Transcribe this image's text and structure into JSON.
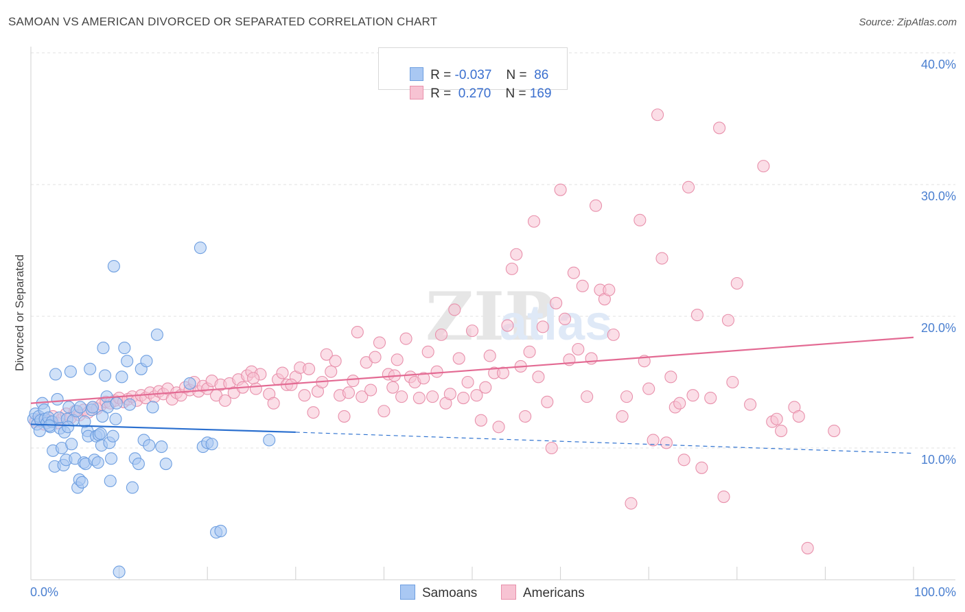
{
  "title": "SAMOAN VS AMERICAN DIVORCED OR SEPARATED CORRELATION CHART",
  "source": "Source: ZipAtlas.com",
  "watermark": "ZIPatlas",
  "legend": {
    "rows": [
      {
        "r_label": "R =",
        "r_value": "-0.037",
        "n_label": "N =",
        "n_value": "86",
        "color": "#a9c8f3",
        "border": "#6d9ee0"
      },
      {
        "r_label": "R =",
        "r_value": "0.270",
        "n_label": "N =",
        "n_value": "169",
        "color": "#f7c3d3",
        "border": "#e890ab"
      }
    ]
  },
  "bottom_legend": [
    {
      "label": "Samoans",
      "color": "#a9c8f3",
      "border": "#6d9ee0"
    },
    {
      "label": "Americans",
      "color": "#f7c3d3",
      "border": "#e890ab"
    }
  ],
  "chart_data": {
    "type": "scatter",
    "title": "SAMOAN VS AMERICAN DIVORCED OR SEPARATED CORRELATION CHART",
    "xlabel": "",
    "ylabel": "Divorced or Separated",
    "xlim": [
      0,
      100
    ],
    "ylim": [
      0,
      42
    ],
    "x_tick_labels": [
      "0.0%",
      "100.0%"
    ],
    "y_ticks": [
      10,
      20,
      30,
      40
    ],
    "y_tick_labels": [
      "10.0%",
      "20.0%",
      "30.0%",
      "40.0%"
    ],
    "grid": true,
    "legend_position": "top-center",
    "series": [
      {
        "name": "Samoans",
        "color": "#6d9ee0",
        "fill": "#a9c8f3",
        "trend": {
          "x0": 0,
          "y0": 11.8,
          "x1": 30,
          "y1": 11.2,
          "dash_to": 100,
          "dash_y": 9.6
        },
        "points": [
          [
            0.3,
            12.2
          ],
          [
            0.5,
            12.6
          ],
          [
            0.7,
            11.8
          ],
          [
            0.9,
            12.4
          ],
          [
            1.1,
            12.1
          ],
          [
            1.3,
            13.4
          ],
          [
            1.5,
            12.9
          ],
          [
            1.6,
            12.2
          ],
          [
            1.8,
            11.9
          ],
          [
            2.0,
            12.3
          ],
          [
            2.2,
            11.6
          ],
          [
            2.4,
            12.0
          ],
          [
            2.5,
            9.8
          ],
          [
            2.7,
            8.6
          ],
          [
            2.8,
            15.6
          ],
          [
            3.0,
            13.7
          ],
          [
            3.2,
            12.3
          ],
          [
            3.3,
            11.5
          ],
          [
            3.5,
            10.0
          ],
          [
            3.7,
            8.7
          ],
          [
            3.8,
            11.2
          ],
          [
            4.0,
            9.1
          ],
          [
            4.1,
            12.2
          ],
          [
            4.3,
            13.1
          ],
          [
            4.5,
            15.8
          ],
          [
            4.6,
            10.3
          ],
          [
            4.8,
            12.1
          ],
          [
            5.0,
            9.2
          ],
          [
            5.2,
            12.8
          ],
          [
            5.3,
            7.0
          ],
          [
            5.5,
            7.6
          ],
          [
            5.6,
            13.1
          ],
          [
            5.8,
            7.4
          ],
          [
            6.0,
            8.9
          ],
          [
            6.2,
            8.8
          ],
          [
            6.4,
            11.3
          ],
          [
            6.5,
            10.9
          ],
          [
            6.7,
            16.0
          ],
          [
            6.9,
            12.9
          ],
          [
            7.0,
            13.1
          ],
          [
            7.2,
            9.1
          ],
          [
            7.4,
            10.9
          ],
          [
            7.6,
            8.9
          ],
          [
            7.7,
            11.0
          ],
          [
            7.9,
            11.1
          ],
          [
            8.0,
            10.2
          ],
          [
            8.2,
            17.6
          ],
          [
            8.4,
            15.5
          ],
          [
            8.6,
            13.9
          ],
          [
            8.7,
            13.1
          ],
          [
            8.9,
            10.4
          ],
          [
            9.0,
            7.5
          ],
          [
            9.1,
            9.2
          ],
          [
            9.3,
            10.9
          ],
          [
            9.4,
            23.8
          ],
          [
            9.6,
            12.2
          ],
          [
            9.7,
            13.4
          ],
          [
            10.0,
            0.6
          ],
          [
            10.3,
            15.4
          ],
          [
            10.6,
            17.6
          ],
          [
            10.9,
            16.6
          ],
          [
            11.2,
            13.3
          ],
          [
            11.5,
            7.0
          ],
          [
            11.8,
            9.2
          ],
          [
            12.2,
            8.8
          ],
          [
            12.5,
            16.0
          ],
          [
            12.8,
            10.6
          ],
          [
            13.1,
            16.6
          ],
          [
            13.4,
            10.2
          ],
          [
            13.8,
            13.1
          ],
          [
            14.3,
            18.6
          ],
          [
            14.8,
            10.1
          ],
          [
            15.3,
            8.8
          ],
          [
            18.0,
            14.9
          ],
          [
            19.2,
            25.2
          ],
          [
            19.5,
            10.1
          ],
          [
            20.0,
            10.4
          ],
          [
            20.5,
            10.3
          ],
          [
            21.0,
            3.6
          ],
          [
            21.5,
            3.7
          ],
          [
            27.0,
            10.6
          ],
          [
            1.0,
            11.3
          ],
          [
            2.1,
            11.7
          ],
          [
            4.2,
            11.6
          ],
          [
            6.1,
            12.0
          ],
          [
            8.1,
            12.4
          ]
        ]
      },
      {
        "name": "Americans",
        "color": "#e890ab",
        "fill": "#f7c3d3",
        "trend": {
          "x0": 0,
          "y0": 13.4,
          "x1": 100,
          "y1": 18.4
        },
        "points": [
          [
            0.5,
            12.0
          ],
          [
            1.0,
            12.2
          ],
          [
            1.5,
            11.8
          ],
          [
            2.0,
            12.1
          ],
          [
            2.5,
            12.4
          ],
          [
            3.0,
            11.9
          ],
          [
            3.5,
            12.2
          ],
          [
            4.0,
            12.6
          ],
          [
            4.5,
            12.3
          ],
          [
            5.0,
            12.8
          ],
          [
            5.5,
            12.5
          ],
          [
            6.0,
            12.9
          ],
          [
            6.5,
            12.7
          ],
          [
            7.0,
            13.1
          ],
          [
            7.5,
            13.0
          ],
          [
            8.0,
            13.3
          ],
          [
            8.5,
            13.5
          ],
          [
            9.0,
            13.4
          ],
          [
            9.5,
            13.6
          ],
          [
            10.0,
            13.8
          ],
          [
            10.5,
            13.5
          ],
          [
            11.0,
            13.7
          ],
          [
            11.5,
            13.9
          ],
          [
            12.0,
            13.6
          ],
          [
            12.5,
            14.0
          ],
          [
            13.0,
            13.8
          ],
          [
            13.5,
            14.2
          ],
          [
            14.0,
            13.9
          ],
          [
            14.5,
            14.3
          ],
          [
            15.0,
            14.1
          ],
          [
            15.5,
            14.5
          ],
          [
            16.0,
            13.7
          ],
          [
            16.5,
            14.2
          ],
          [
            17.0,
            14.0
          ],
          [
            17.5,
            14.6
          ],
          [
            18.0,
            14.4
          ],
          [
            18.5,
            15.0
          ],
          [
            19.0,
            14.3
          ],
          [
            19.5,
            14.7
          ],
          [
            20.0,
            14.5
          ],
          [
            20.5,
            15.1
          ],
          [
            21.0,
            14.0
          ],
          [
            21.5,
            14.8
          ],
          [
            22.0,
            13.6
          ],
          [
            22.5,
            14.9
          ],
          [
            23.0,
            14.2
          ],
          [
            23.5,
            15.2
          ],
          [
            24.0,
            14.6
          ],
          [
            24.5,
            15.5
          ],
          [
            25.0,
            15.8
          ],
          [
            25.5,
            14.5
          ],
          [
            26.0,
            15.6
          ],
          [
            27.0,
            14.1
          ],
          [
            27.5,
            13.4
          ],
          [
            28.0,
            15.2
          ],
          [
            28.5,
            15.7
          ],
          [
            29.0,
            14.8
          ],
          [
            30.0,
            15.4
          ],
          [
            30.5,
            16.1
          ],
          [
            31.0,
            14.0
          ],
          [
            31.5,
            16.0
          ],
          [
            32.0,
            12.7
          ],
          [
            32.5,
            14.3
          ],
          [
            33.0,
            15.0
          ],
          [
            33.5,
            17.1
          ],
          [
            34.0,
            15.8
          ],
          [
            34.5,
            16.6
          ],
          [
            35.0,
            14.0
          ],
          [
            35.5,
            12.4
          ],
          [
            36.0,
            14.2
          ],
          [
            36.5,
            15.1
          ],
          [
            37.0,
            18.8
          ],
          [
            37.5,
            13.9
          ],
          [
            38.0,
            16.5
          ],
          [
            38.5,
            14.4
          ],
          [
            39.0,
            16.9
          ],
          [
            39.5,
            18.0
          ],
          [
            40.0,
            12.8
          ],
          [
            40.5,
            15.6
          ],
          [
            41.0,
            14.6
          ],
          [
            41.5,
            16.7
          ],
          [
            42.0,
            13.9
          ],
          [
            42.5,
            18.3
          ],
          [
            43.0,
            15.4
          ],
          [
            43.5,
            15.0
          ],
          [
            44.0,
            13.8
          ],
          [
            44.5,
            15.3
          ],
          [
            45.0,
            17.3
          ],
          [
            45.5,
            13.9
          ],
          [
            46.0,
            15.8
          ],
          [
            46.5,
            18.6
          ],
          [
            47.0,
            13.4
          ],
          [
            47.5,
            14.1
          ],
          [
            48.0,
            20.5
          ],
          [
            48.5,
            16.8
          ],
          [
            49.0,
            13.8
          ],
          [
            49.5,
            15.0
          ],
          [
            50.0,
            18.9
          ],
          [
            50.5,
            14.0
          ],
          [
            51.0,
            12.1
          ],
          [
            51.5,
            14.6
          ],
          [
            52.0,
            17.0
          ],
          [
            52.5,
            15.7
          ],
          [
            53.0,
            11.6
          ],
          [
            53.5,
            15.7
          ],
          [
            54.0,
            19.3
          ],
          [
            54.5,
            23.6
          ],
          [
            55.0,
            24.7
          ],
          [
            55.5,
            16.2
          ],
          [
            56.0,
            12.4
          ],
          [
            56.5,
            17.3
          ],
          [
            57.0,
            27.2
          ],
          [
            57.5,
            15.4
          ],
          [
            58.0,
            19.2
          ],
          [
            58.5,
            13.5
          ],
          [
            59.0,
            10.0
          ],
          [
            59.5,
            21.0
          ],
          [
            60.0,
            29.6
          ],
          [
            60.5,
            19.8
          ],
          [
            61.0,
            16.7
          ],
          [
            61.5,
            23.3
          ],
          [
            62.0,
            17.5
          ],
          [
            62.5,
            22.3
          ],
          [
            63.0,
            13.9
          ],
          [
            63.5,
            16.8
          ],
          [
            64.0,
            28.4
          ],
          [
            64.5,
            22.0
          ],
          [
            65.0,
            21.3
          ],
          [
            65.5,
            22.0
          ],
          [
            66.0,
            18.6
          ],
          [
            67.0,
            12.4
          ],
          [
            67.5,
            13.9
          ],
          [
            68.0,
            5.8
          ],
          [
            69.0,
            27.3
          ],
          [
            69.5,
            16.6
          ],
          [
            70.0,
            14.5
          ],
          [
            70.5,
            10.6
          ],
          [
            71.0,
            35.3
          ],
          [
            71.5,
            24.4
          ],
          [
            72.0,
            10.4
          ],
          [
            72.5,
            15.4
          ],
          [
            73.0,
            13.1
          ],
          [
            73.5,
            13.4
          ],
          [
            74.0,
            9.1
          ],
          [
            74.5,
            29.8
          ],
          [
            75.0,
            14.0
          ],
          [
            75.5,
            20.1
          ],
          [
            76.0,
            8.5
          ],
          [
            77.0,
            13.8
          ],
          [
            78.0,
            34.3
          ],
          [
            78.5,
            6.3
          ],
          [
            79.0,
            19.7
          ],
          [
            79.5,
            15.0
          ],
          [
            80.0,
            22.5
          ],
          [
            81.5,
            13.3
          ],
          [
            83.0,
            31.4
          ],
          [
            84.0,
            12.0
          ],
          [
            84.5,
            12.2
          ],
          [
            85.0,
            11.3
          ],
          [
            86.5,
            13.1
          ],
          [
            87.0,
            12.4
          ],
          [
            88.0,
            2.4
          ],
          [
            91.0,
            11.3
          ],
          [
            25.2,
            15.3
          ],
          [
            41.2,
            15.5
          ],
          [
            29.5,
            14.8
          ]
        ]
      }
    ]
  }
}
